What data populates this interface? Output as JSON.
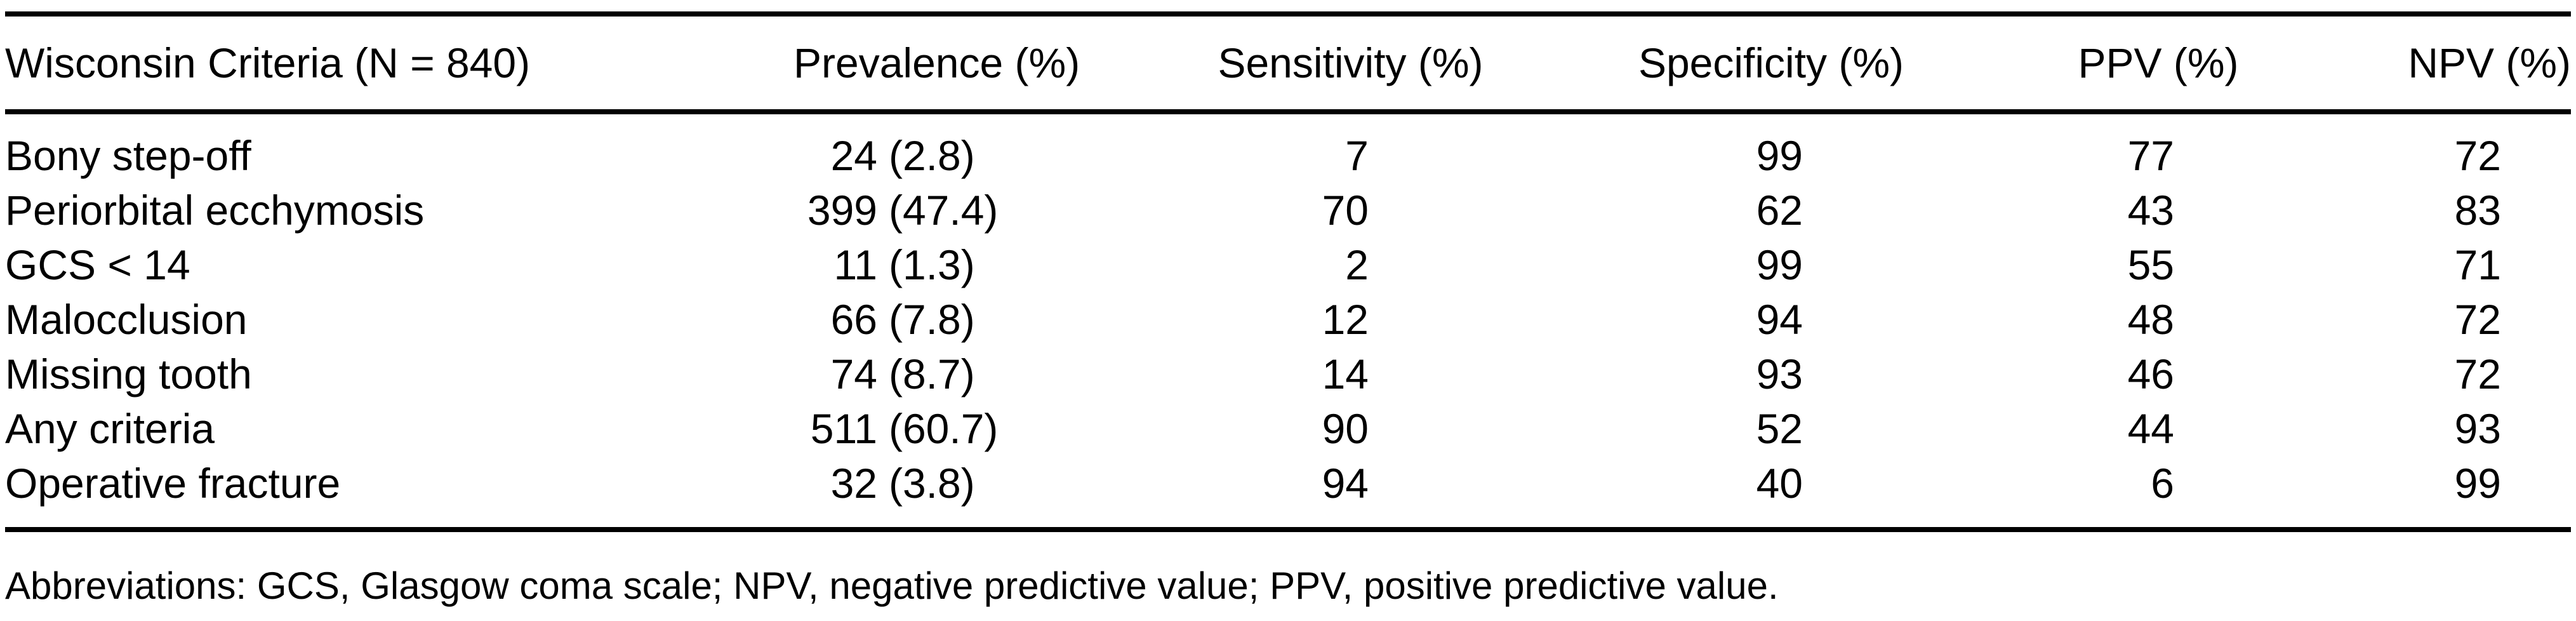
{
  "page": {
    "background_color": "#ffffff",
    "text_color": "#000000"
  },
  "table": {
    "header": {
      "criteria": "Wisconsin Criteria (N = 840)",
      "prevalence": "Prevalence (%)",
      "sensitivity": "Sensitivity (%)",
      "specificity": "Specificity (%)",
      "ppv": "PPV (%)",
      "npv": "NPV (%)"
    },
    "rows": [
      {
        "criteria": "Bony step-off",
        "prevalence_n": "24",
        "prevalence_pct": "(2.8)",
        "sensitivity": "7",
        "specificity": "99",
        "ppv": "77",
        "npv": "72"
      },
      {
        "criteria": "Periorbital ecchymosis",
        "prevalence_n": "399",
        "prevalence_pct": "(47.4)",
        "sensitivity": "70",
        "specificity": "62",
        "ppv": "43",
        "npv": "83"
      },
      {
        "criteria": "GCS < 14",
        "prevalence_n": "11",
        "prevalence_pct": "(1.3)",
        "sensitivity": "2",
        "specificity": "99",
        "ppv": "55",
        "npv": "71"
      },
      {
        "criteria": "Malocclusion",
        "prevalence_n": "66",
        "prevalence_pct": "(7.8)",
        "sensitivity": "12",
        "specificity": "94",
        "ppv": "48",
        "npv": "72"
      },
      {
        "criteria": "Missing tooth",
        "prevalence_n": "74",
        "prevalence_pct": "(8.7)",
        "sensitivity": "14",
        "specificity": "93",
        "ppv": "46",
        "npv": "72"
      },
      {
        "criteria": "Any criteria",
        "prevalence_n": "511",
        "prevalence_pct": "(60.7)",
        "sensitivity": "90",
        "specificity": "52",
        "ppv": "44",
        "npv": "93"
      },
      {
        "criteria": "Operative fracture",
        "prevalence_n": "32",
        "prevalence_pct": "(3.8)",
        "sensitivity": "94",
        "specificity": "40",
        "ppv": "6",
        "npv": "99"
      }
    ],
    "footnote": "Abbreviations: GCS, Glasgow coma scale; NPV, negative predictive value; PPV, positive predictive value."
  },
  "chart_data": {
    "type": "table",
    "title": "Wisconsin Criteria (N = 840)",
    "columns": [
      "Wisconsin Criteria (N = 840)",
      "Prevalence (%)",
      "Sensitivity (%)",
      "Specificity (%)",
      "PPV (%)",
      "NPV (%)"
    ],
    "rows": [
      [
        "Bony step-off",
        "24 (2.8)",
        7,
        99,
        77,
        72
      ],
      [
        "Periorbital ecchymosis",
        "399 (47.4)",
        70,
        62,
        43,
        83
      ],
      [
        "GCS < 14",
        "11 (1.3)",
        2,
        99,
        55,
        71
      ],
      [
        "Malocclusion",
        "66 (7.8)",
        12,
        94,
        48,
        72
      ],
      [
        "Missing tooth",
        "74 (8.7)",
        14,
        93,
        46,
        72
      ],
      [
        "Any criteria",
        "511 (60.7)",
        90,
        52,
        44,
        93
      ],
      [
        "Operative fracture",
        "32 (3.8)",
        94,
        40,
        6,
        99
      ]
    ],
    "footnote": "Abbreviations: GCS, Glasgow coma scale; NPV, negative predictive value; PPV, positive predictive value."
  }
}
